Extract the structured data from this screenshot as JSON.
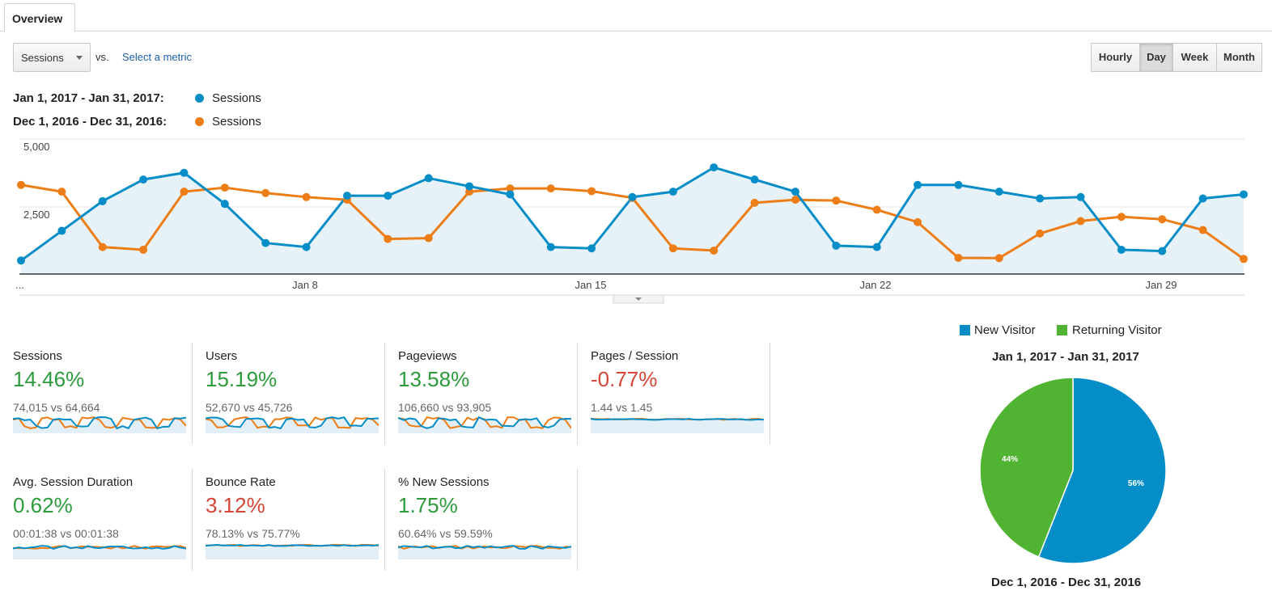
{
  "tab": {
    "label": "Overview"
  },
  "controls": {
    "metric": "Sessions",
    "vs": "vs.",
    "compare_link": "Select a metric",
    "granularity": [
      "Hourly",
      "Day",
      "Week",
      "Month"
    ],
    "active_granularity": "Day"
  },
  "legend": {
    "current_range": "Jan 1, 2017 - Jan 31, 2017:",
    "previous_range": "Dec 1, 2016 - Dec 31, 2016:",
    "current_series": "Sessions",
    "previous_series": "Sessions",
    "current_color": "#058dc7",
    "previous_color": "#ed7e17"
  },
  "chart_data": {
    "type": "area",
    "y_tick_labels": [
      "5,000",
      "2,500"
    ],
    "x_tick_labels": [
      "...",
      "Jan 8",
      "Jan 15",
      "Jan 22",
      "Jan 29"
    ],
    "ylim": [
      0,
      5000
    ],
    "grid": true,
    "x": [
      1,
      2,
      3,
      4,
      5,
      6,
      7,
      8,
      9,
      10,
      11,
      12,
      13,
      14,
      15,
      16,
      17,
      18,
      19,
      20,
      21,
      22,
      23,
      24,
      25,
      26,
      27,
      28,
      29,
      30,
      31
    ],
    "series": [
      {
        "name": "Sessions",
        "color": "#058dc7",
        "values": [
          500,
          1600,
          2700,
          3500,
          3750,
          2600,
          1150,
          1000,
          2900,
          2900,
          3550,
          3250,
          2950,
          1000,
          950,
          2850,
          3050,
          3950,
          3500,
          3050,
          1050,
          1000,
          3300,
          3300,
          3050,
          2800,
          2850,
          900,
          850,
          2800,
          2950
        ]
      },
      {
        "name": "Sessions",
        "color": "#ed7e17",
        "values": [
          3300,
          3050,
          1000,
          900,
          3050,
          3200,
          3000,
          2850,
          2750,
          1300,
          1330,
          3050,
          3170,
          3170,
          3070,
          2820,
          950,
          870,
          2640,
          2750,
          2720,
          2380,
          1920,
          600,
          590,
          1500,
          1960,
          2120,
          2030,
          1630,
          560
        ]
      }
    ]
  },
  "scorecards": [
    {
      "title": "Sessions",
      "change": "14.46%",
      "trend": "up",
      "compare": "74,015 vs 64,664"
    },
    {
      "title": "Users",
      "change": "15.19%",
      "trend": "up",
      "compare": "52,670 vs 45,726"
    },
    {
      "title": "Pageviews",
      "change": "13.58%",
      "trend": "up",
      "compare": "106,660 vs 93,905"
    },
    {
      "title": "Pages / Session",
      "change": "-0.77%",
      "trend": "down",
      "compare": "1.44 vs 1.45"
    },
    {
      "title": "Avg. Session Duration",
      "change": "0.62%",
      "trend": "up",
      "compare": "00:01:38 vs 00:01:38"
    },
    {
      "title": "Bounce Rate",
      "change": "3.12%",
      "trend": "down",
      "compare": "78.13% vs 75.77%"
    },
    {
      "title": "% New Sessions",
      "change": "1.75%",
      "trend": "up",
      "compare": "60.64% vs 59.59%"
    }
  ],
  "pie": {
    "legend": [
      {
        "label": "New Visitor",
        "color": "#058dc7"
      },
      {
        "label": "Returning Visitor",
        "color": "#50b432"
      }
    ],
    "current_title": "Jan 1, 2017 - Jan 31, 2017",
    "previous_title": "Dec 1, 2016 - Dec 31, 2016",
    "chart_data": {
      "type": "pie",
      "slices": [
        {
          "label": "New Visitor",
          "value": 56,
          "text": "56%",
          "color": "#058dc7"
        },
        {
          "label": "Returning Visitor",
          "value": 44,
          "text": "44%",
          "color": "#50b432"
        }
      ]
    }
  }
}
